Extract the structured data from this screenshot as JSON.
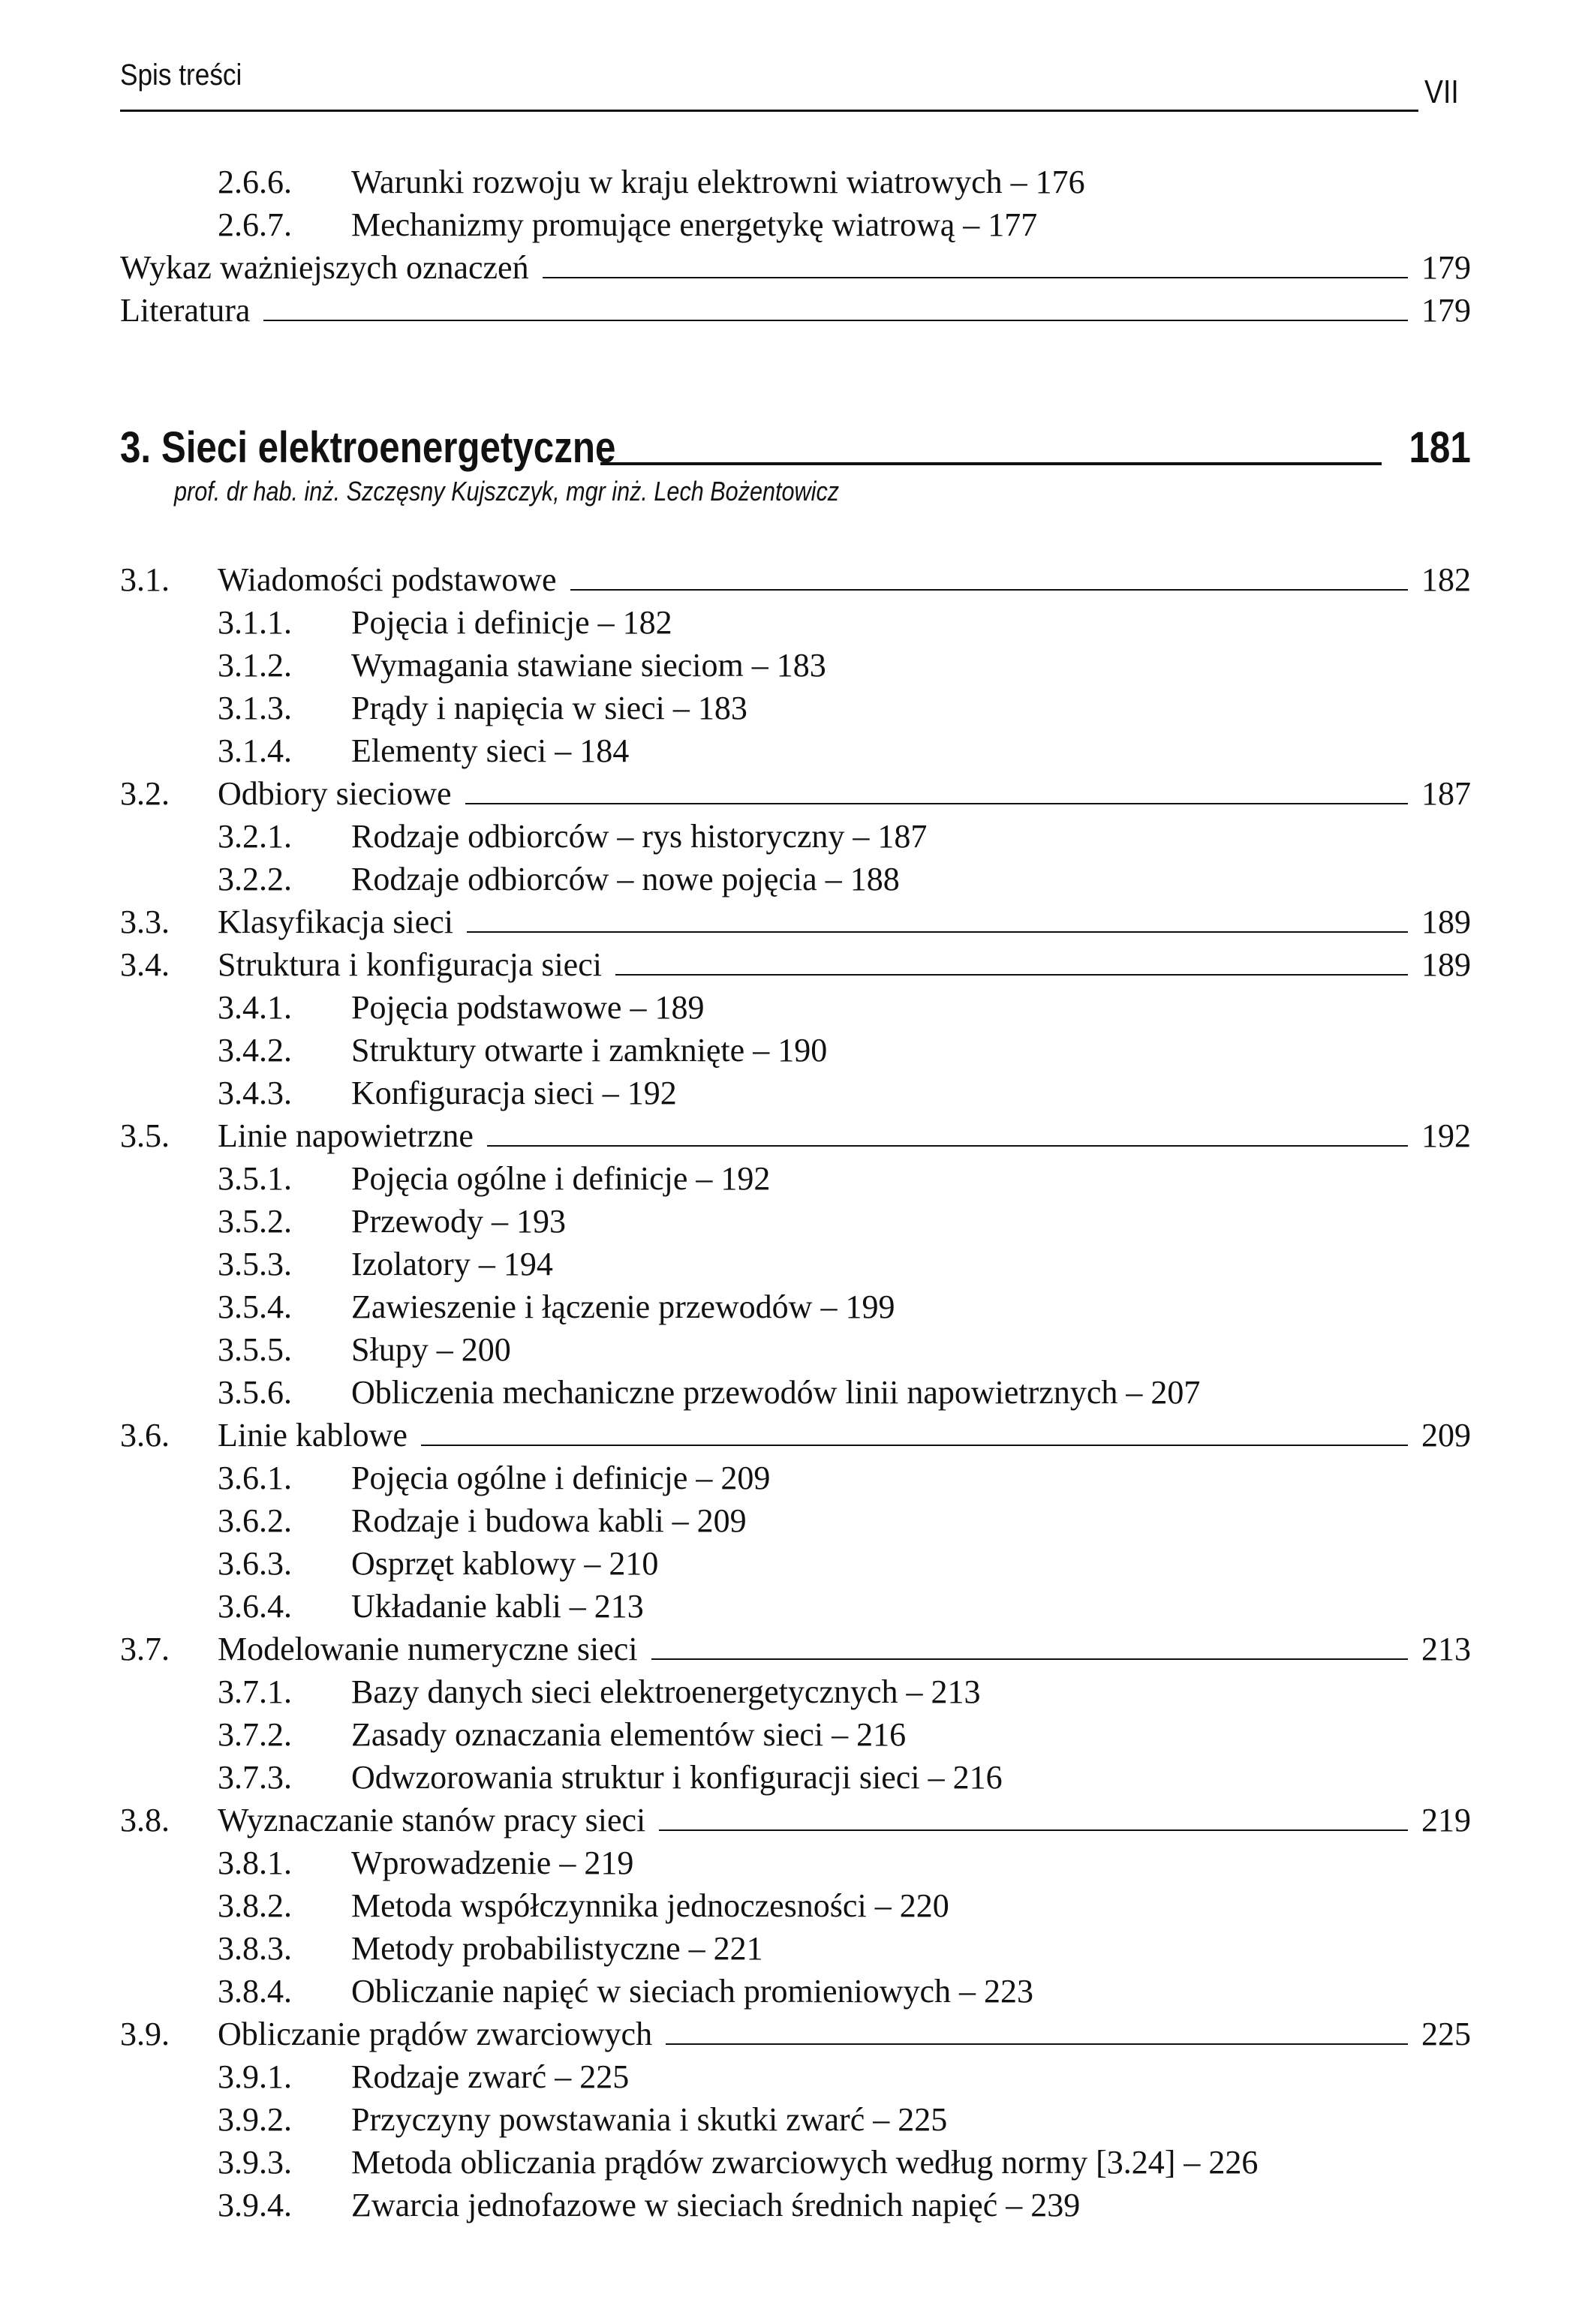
{
  "header": {
    "section": "Spis treści",
    "page_number": "VII"
  },
  "top_entries": [
    {
      "level": 2,
      "num": "2.6.6.",
      "text": "Warunki rozwoju w kraju elektrowni wiatrowych",
      "page": "176"
    },
    {
      "level": 2,
      "num": "2.6.7.",
      "text": "Mechanizmy promujące energetykę wiatrową",
      "page": "177"
    },
    {
      "level": 0,
      "num": "",
      "text": "Wykaz ważniejszych oznaczeń",
      "page": "179"
    },
    {
      "level": 0,
      "num": "",
      "text": "Literatura",
      "page": "179"
    }
  ],
  "chapter": {
    "title": "3. Sieci elektroenergetyczne",
    "page": "181",
    "authors": "prof. dr hab. inż. Szczęsny Kujszczyk, mgr inż. Lech Bożentowicz"
  },
  "entries": [
    {
      "level": 1,
      "num": "3.1.",
      "text": "Wiadomości podstawowe",
      "page": "182"
    },
    {
      "level": 2,
      "num": "3.1.1.",
      "text": "Pojęcia i definicje",
      "page": "182"
    },
    {
      "level": 2,
      "num": "3.1.2.",
      "text": "Wymagania stawiane sieciom",
      "page": "183"
    },
    {
      "level": 2,
      "num": "3.1.3.",
      "text": "Prądy i napięcia w sieci",
      "page": "183"
    },
    {
      "level": 2,
      "num": "3.1.4.",
      "text": "Elementy sieci",
      "page": "184"
    },
    {
      "level": 1,
      "num": "3.2.",
      "text": "Odbiory sieciowe",
      "page": "187"
    },
    {
      "level": 2,
      "num": "3.2.1.",
      "text": "Rodzaje odbiorców – rys historyczny",
      "page": "187"
    },
    {
      "level": 2,
      "num": "3.2.2.",
      "text": "Rodzaje odbiorców – nowe pojęcia",
      "page": "188"
    },
    {
      "level": 1,
      "num": "3.3.",
      "text": "Klasyfikacja sieci",
      "page": "189"
    },
    {
      "level": 1,
      "num": "3.4.",
      "text": "Struktura i konfiguracja sieci",
      "page": "189"
    },
    {
      "level": 2,
      "num": "3.4.1.",
      "text": "Pojęcia podstawowe",
      "page": "189"
    },
    {
      "level": 2,
      "num": "3.4.2.",
      "text": "Struktury otwarte i zamknięte",
      "page": "190"
    },
    {
      "level": 2,
      "num": "3.4.3.",
      "text": "Konfiguracja sieci",
      "page": "192"
    },
    {
      "level": 1,
      "num": "3.5.",
      "text": "Linie napowietrzne",
      "page": "192"
    },
    {
      "level": 2,
      "num": "3.5.1.",
      "text": "Pojęcia ogólne i definicje",
      "page": "192"
    },
    {
      "level": 2,
      "num": "3.5.2.",
      "text": "Przewody",
      "page": "193"
    },
    {
      "level": 2,
      "num": "3.5.3.",
      "text": "Izolatory",
      "page": "194"
    },
    {
      "level": 2,
      "num": "3.5.4.",
      "text": "Zawieszenie i łączenie przewodów",
      "page": "199"
    },
    {
      "level": 2,
      "num": "3.5.5.",
      "text": "Słupy",
      "page": "200"
    },
    {
      "level": 2,
      "num": "3.5.6.",
      "text": "Obliczenia mechaniczne przewodów linii napowietrznych",
      "page": "207"
    },
    {
      "level": 1,
      "num": "3.6.",
      "text": "Linie kablowe",
      "page": "209"
    },
    {
      "level": 2,
      "num": "3.6.1.",
      "text": "Pojęcia ogólne i definicje",
      "page": "209"
    },
    {
      "level": 2,
      "num": "3.6.2.",
      "text": "Rodzaje i budowa kabli",
      "page": "209"
    },
    {
      "level": 2,
      "num": "3.6.3.",
      "text": "Osprzęt kablowy",
      "page": "210"
    },
    {
      "level": 2,
      "num": "3.6.4.",
      "text": "Układanie kabli",
      "page": "213"
    },
    {
      "level": 1,
      "num": "3.7.",
      "text": "Modelowanie numeryczne sieci",
      "page": "213"
    },
    {
      "level": 2,
      "num": "3.7.1.",
      "text": "Bazy danych sieci elektroenergetycznych",
      "page": "213"
    },
    {
      "level": 2,
      "num": "3.7.2.",
      "text": "Zasady oznaczania elementów sieci",
      "page": "216"
    },
    {
      "level": 2,
      "num": "3.7.3.",
      "text": "Odwzorowania struktur i konfiguracji sieci",
      "page": "216"
    },
    {
      "level": 1,
      "num": "3.8.",
      "text": "Wyznaczanie stanów pracy sieci",
      "page": "219"
    },
    {
      "level": 2,
      "num": "3.8.1.",
      "text": "Wprowadzenie",
      "page": "219"
    },
    {
      "level": 2,
      "num": "3.8.2.",
      "text": "Metoda współczynnika jednoczesności",
      "page": "220"
    },
    {
      "level": 2,
      "num": "3.8.3.",
      "text": "Metody probabilistyczne",
      "page": "221"
    },
    {
      "level": 2,
      "num": "3.8.4.",
      "text": "Obliczanie napięć w sieciach promieniowych",
      "page": "223"
    },
    {
      "level": 1,
      "num": "3.9.",
      "text": "Obliczanie prądów zwarciowych",
      "page": "225"
    },
    {
      "level": 2,
      "num": "3.9.1.",
      "text": "Rodzaje zwarć",
      "page": "225"
    },
    {
      "level": 2,
      "num": "3.9.2.",
      "text": "Przyczyny powstawania i skutki zwarć",
      "page": "225"
    },
    {
      "level": 2,
      "num": "3.9.3.",
      "text": "Metoda obliczania prądów zwarciowych według normy [3.24]",
      "page": "226"
    },
    {
      "level": 2,
      "num": "3.9.4.",
      "text": "Zwarcia jednofazowe w sieciach średnich napięć",
      "page": "239"
    }
  ]
}
